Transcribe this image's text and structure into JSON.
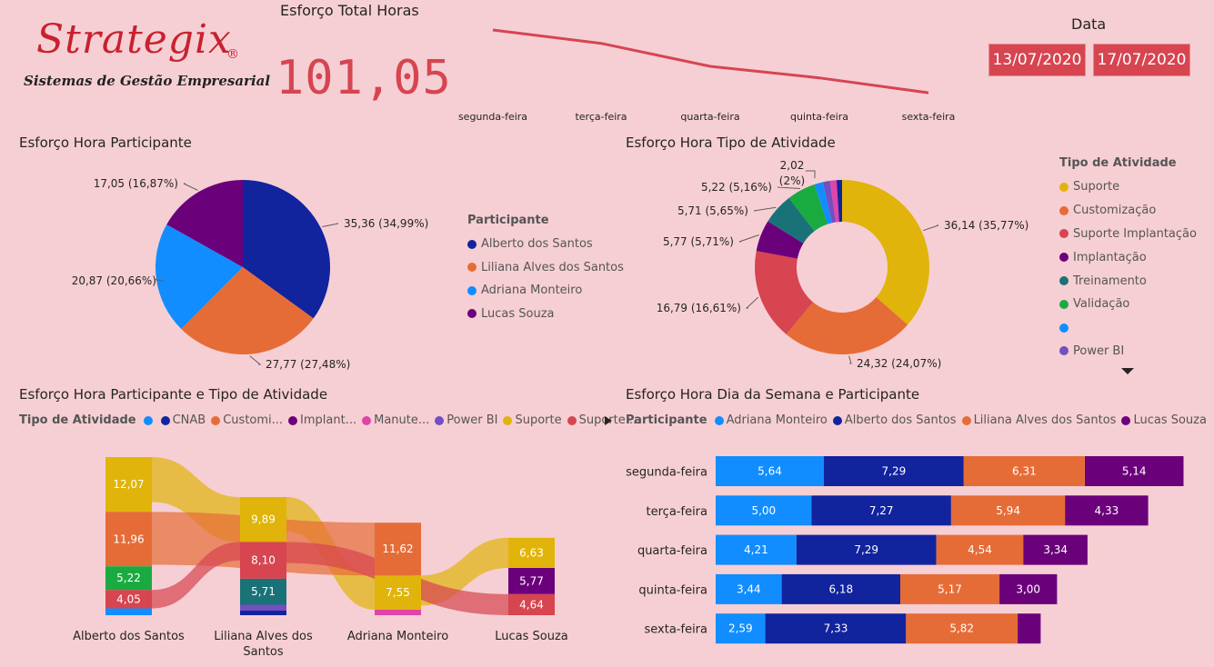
{
  "colors": {
    "navy": "#12239e",
    "orange": "#e66c37",
    "blue": "#118dff",
    "purple": "#6b007b",
    "gold": "#e0b40a",
    "red": "#d64550",
    "teal": "#197278",
    "green": "#1aab40",
    "violet": "#744ec2",
    "pink": "#e044a7",
    "accent": "#d64550",
    "background": "#f6cfd4"
  },
  "logo": {
    "name": "Strategix",
    "registered": "®",
    "subtitle": "Sistemas de Gestão Empresarial"
  },
  "kpi": {
    "title": "Esforço Total Horas",
    "value": "101,05"
  },
  "date": {
    "label": "Data",
    "start": "13/07/2020",
    "end": "17/07/2020"
  },
  "ui": {
    "legend_more_icon": "chevron-down-icon",
    "legend_next_icon": "caret-right-icon"
  },
  "legends": {
    "participant_title": "Participante",
    "participants": [
      {
        "label": "Alberto dos Santos",
        "color": "#12239e"
      },
      {
        "label": "Liliana Alves dos Santos",
        "color": "#e66c37"
      },
      {
        "label": "Adriana Monteiro",
        "color": "#118dff"
      },
      {
        "label": "Lucas Souza",
        "color": "#6b007b"
      }
    ],
    "activity_title": "Tipo de Atividade",
    "activities": [
      {
        "label": "Suporte",
        "color": "#e0b40a"
      },
      {
        "label": "Customização",
        "color": "#e66c37"
      },
      {
        "label": "Suporte Implantação",
        "color": "#d64550"
      },
      {
        "label": "Implantação",
        "color": "#6b007b"
      },
      {
        "label": "Treinamento",
        "color": "#197278"
      },
      {
        "label": "Validação",
        "color": "#1aab40"
      },
      {
        "label": "",
        "color": "#118dff"
      },
      {
        "label": "Power BI",
        "color": "#744ec2"
      }
    ],
    "sankey_items": [
      {
        "label": "",
        "color": "#118dff"
      },
      {
        "label": "CNAB",
        "color": "#12239e"
      },
      {
        "label": "Customi...",
        "color": "#e66c37"
      },
      {
        "label": "Implant...",
        "color": "#6b007b"
      },
      {
        "label": "Manute...",
        "color": "#e044a7"
      },
      {
        "label": "Power BI",
        "color": "#744ec2"
      },
      {
        "label": "Suporte",
        "color": "#e0b40a"
      },
      {
        "label": "Suporte ...",
        "color": "#d64550"
      }
    ],
    "bar_items": [
      {
        "label": "Adriana Monteiro",
        "color": "#118dff"
      },
      {
        "label": "Alberto dos Santos",
        "color": "#12239e"
      },
      {
        "label": "Liliana Alves dos Santos",
        "color": "#e66c37"
      },
      {
        "label": "Lucas Souza",
        "color": "#6b007b"
      }
    ]
  },
  "chart_data": [
    {
      "id": "trend",
      "type": "line",
      "title": "Esforço Total Horas",
      "categories": [
        "segunda-feira",
        "terça-feira",
        "quarta-feira",
        "quinta-feira",
        "sexta-feira"
      ],
      "values": [
        24.38,
        22.54,
        19.38,
        17.79,
        15.74
      ]
    },
    {
      "id": "pie",
      "type": "pie",
      "title": "Esforço Hora Participante",
      "slices": [
        {
          "label": "Alberto dos Santos",
          "value": 35.36,
          "text": "35,36 (34,99%)",
          "color": "#12239e"
        },
        {
          "label": "Liliana Alves dos Santos",
          "value": 27.77,
          "text": "27,77 (27,48%)",
          "color": "#e66c37"
        },
        {
          "label": "Adriana Monteiro",
          "value": 20.87,
          "text": "20,87 (20,66%)",
          "color": "#118dff"
        },
        {
          "label": "Lucas Souza",
          "value": 17.05,
          "text": "17,05 (16,87%)",
          "color": "#6b007b"
        }
      ]
    },
    {
      "id": "donut",
      "type": "pie",
      "title": "Esforço Hora Tipo de Atividade",
      "slices": [
        {
          "label": "Suporte",
          "value": 36.14,
          "text": "36,14 (35,77%)",
          "color": "#e0b40a"
        },
        {
          "label": "Customização",
          "value": 24.32,
          "text": "24,32 (24,07%)",
          "color": "#e66c37"
        },
        {
          "label": "Suporte Implantação",
          "value": 16.79,
          "text": "16,79 (16,61%)",
          "color": "#d64550"
        },
        {
          "label": "Implantação",
          "value": 5.77,
          "text": "5,77 (5,71%)",
          "color": "#6b007b"
        },
        {
          "label": "Treinamento",
          "value": 5.71,
          "text": "5,71 (5,65%)",
          "color": "#197278"
        },
        {
          "label": "Validação",
          "value": 5.22,
          "text": "5,22 (5,16%)",
          "color": "#1aab40"
        },
        {
          "label": "",
          "value": 1.6,
          "text": "",
          "color": "#118dff"
        },
        {
          "label": "Power BI",
          "value": 1.3,
          "text": "",
          "color": "#744ec2"
        },
        {
          "label": "Manutenção",
          "value": 1.2,
          "text": "",
          "color": "#e044a7"
        },
        {
          "label": "CNAB",
          "value": 1.0,
          "text": "",
          "color": "#12239e"
        }
      ],
      "annotation": "2,02 (2%)"
    },
    {
      "id": "sankey",
      "type": "sankey",
      "title": "Esforço Hora Participante e Tipo de Atividade",
      "nodes": [
        {
          "participant": "Alberto dos Santos",
          "segments": [
            {
              "activity": "Suporte",
              "value": 12.07,
              "text": "12,07",
              "color": "#e0b40a"
            },
            {
              "activity": "Customização",
              "value": 11.96,
              "text": "11,96",
              "color": "#e66c37"
            },
            {
              "activity": "Validação",
              "value": 5.22,
              "text": "5,22",
              "color": "#1aab40"
            },
            {
              "activity": "Suporte Implantação",
              "value": 4.05,
              "text": "4,05",
              "color": "#d64550"
            },
            {
              "activity": "",
              "value": 1.5,
              "text": "",
              "color": "#118dff"
            }
          ]
        },
        {
          "participant": "Liliana Alves dos Santos",
          "segments": [
            {
              "activity": "Suporte",
              "value": 9.89,
              "text": "9,89",
              "color": "#e0b40a"
            },
            {
              "activity": "Suporte Implantação",
              "value": 8.1,
              "text": "8,10",
              "color": "#d64550"
            },
            {
              "activity": "Treinamento",
              "value": 5.71,
              "text": "5,71",
              "color": "#197278"
            },
            {
              "activity": "Power BI",
              "value": 1.3,
              "text": "",
              "color": "#744ec2"
            },
            {
              "activity": "CNAB",
              "value": 1.0,
              "text": "",
              "color": "#12239e"
            }
          ]
        },
        {
          "participant": "Adriana Monteiro",
          "segments": [
            {
              "activity": "Customização",
              "value": 11.62,
              "text": "11,62",
              "color": "#e66c37"
            },
            {
              "activity": "Suporte",
              "value": 7.55,
              "text": "7,55",
              "color": "#e0b40a"
            },
            {
              "activity": "Manutenção",
              "value": 1.2,
              "text": "",
              "color": "#e044a7"
            }
          ]
        },
        {
          "participant": "Lucas Souza",
          "segments": [
            {
              "activity": "Suporte",
              "value": 6.63,
              "text": "6,63",
              "color": "#e0b40a"
            },
            {
              "activity": "Implantação",
              "value": 5.77,
              "text": "5,77",
              "color": "#6b007b"
            },
            {
              "activity": "Suporte Implantação",
              "value": 4.64,
              "text": "4,64",
              "color": "#d64550"
            }
          ]
        }
      ]
    },
    {
      "id": "bars",
      "type": "bar",
      "title": "Esforço Hora Dia da Semana e Participante",
      "stacked": true,
      "orientation": "horizontal",
      "categories": [
        "segunda-feira",
        "terça-feira",
        "quarta-feira",
        "quinta-feira",
        "sexta-feira"
      ],
      "series": [
        {
          "name": "Adriana Monteiro",
          "color": "#118dff",
          "values": [
            5.64,
            5.0,
            4.21,
            3.44,
            2.59
          ],
          "texts": [
            "5,64",
            "5,00",
            "4,21",
            "3,44",
            "2,59"
          ]
        },
        {
          "name": "Alberto dos Santos",
          "color": "#12239e",
          "values": [
            7.29,
            7.27,
            7.29,
            6.18,
            7.33
          ],
          "texts": [
            "7,29",
            "7,27",
            "7,29",
            "6,18",
            "7,33"
          ]
        },
        {
          "name": "Liliana Alves dos Santos",
          "color": "#e66c37",
          "values": [
            6.31,
            5.94,
            4.54,
            5.17,
            5.82
          ],
          "texts": [
            "6,31",
            "5,94",
            "4,54",
            "5,17",
            "5,82"
          ]
        },
        {
          "name": "Lucas Souza",
          "color": "#6b007b",
          "values": [
            5.14,
            4.33,
            3.34,
            3.0,
            1.2
          ],
          "texts": [
            "5,14",
            "4,33",
            "3,34",
            "3,00",
            ""
          ]
        }
      ]
    }
  ]
}
